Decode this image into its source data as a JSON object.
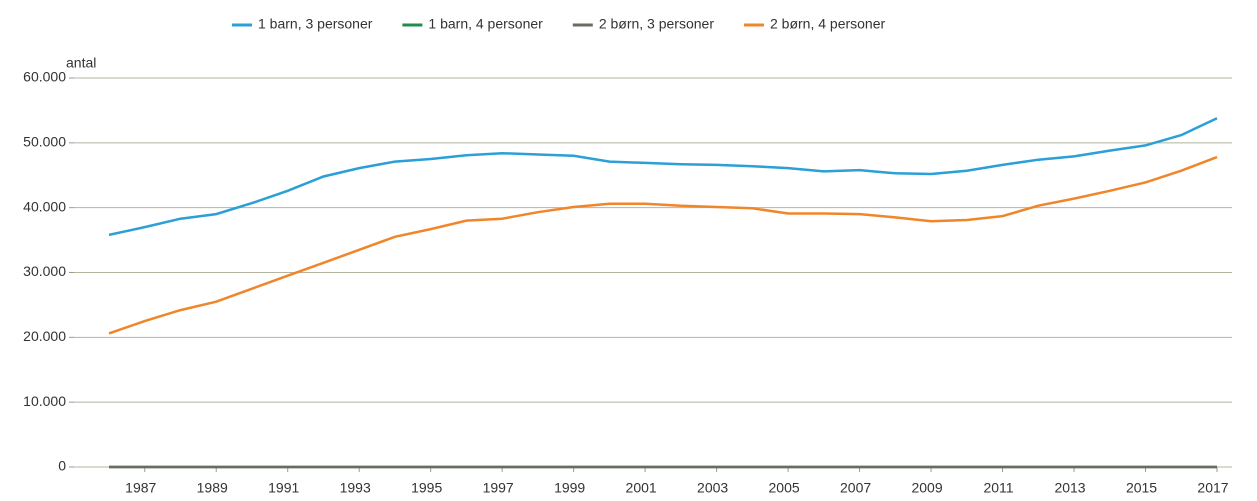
{
  "chart_data": {
    "type": "line",
    "y_label": "antal",
    "x": [
      1986,
      1987,
      1988,
      1989,
      1990,
      1991,
      1992,
      1993,
      1994,
      1995,
      1996,
      1997,
      1998,
      1999,
      2000,
      2001,
      2002,
      2003,
      2004,
      2005,
      2006,
      2007,
      2008,
      2009,
      2010,
      2011,
      2012,
      2013,
      2014,
      2015,
      2016,
      2017
    ],
    "xlim": [
      1986,
      2017
    ],
    "xticks": [
      1987,
      1989,
      1991,
      1993,
      1995,
      1997,
      1999,
      2001,
      2003,
      2005,
      2007,
      2009,
      2011,
      2013,
      2015,
      2017
    ],
    "ylim": [
      0,
      60000
    ],
    "yticks": [
      0,
      {
        "value": 10000,
        "label": "10.000"
      },
      {
        "value": 20000,
        "label": "20.000"
      },
      {
        "value": 30000,
        "label": "30.000"
      },
      {
        "value": 40000,
        "label": "40.000"
      },
      {
        "value": 50000,
        "label": "50.000"
      },
      {
        "value": 60000,
        "label": "60.000"
      }
    ],
    "grid": true,
    "legend": "top",
    "series": [
      {
        "name": "1 barn, 3 personer",
        "color": "#2a9fd8",
        "values": [
          35800,
          37000,
          38300,
          39000,
          40700,
          42600,
          44800,
          46100,
          47100,
          47500,
          48100,
          48400,
          48200,
          48000,
          47100,
          46900,
          46700,
          46600,
          46400,
          46100,
          45600,
          45800,
          45300,
          45200,
          45700,
          46600,
          47400,
          47900,
          48800,
          49600,
          51200,
          53800
        ]
      },
      {
        "name": "1 barn, 4 personer",
        "color": "#1e8e4e",
        "values": [
          0,
          0,
          0,
          0,
          0,
          0,
          0,
          0,
          0,
          0,
          0,
          0,
          0,
          0,
          0,
          0,
          0,
          0,
          0,
          0,
          0,
          0,
          0,
          0,
          0,
          0,
          0,
          0,
          0,
          0,
          0,
          0
        ]
      },
      {
        "name": "2 børn, 3 personer",
        "color": "#6b6b62",
        "values": [
          0,
          0,
          0,
          0,
          0,
          0,
          0,
          0,
          0,
          0,
          0,
          0,
          0,
          0,
          0,
          0,
          0,
          0,
          0,
          0,
          0,
          0,
          0,
          0,
          0,
          0,
          0,
          0,
          0,
          0,
          0,
          0
        ]
      },
      {
        "name": "2 børn, 4 personer",
        "color": "#f0862a",
        "values": [
          20600,
          22500,
          24200,
          25500,
          27500,
          29500,
          31500,
          33500,
          35500,
          36700,
          38000,
          38300,
          39300,
          40100,
          40600,
          40600,
          40300,
          40100,
          39900,
          39100,
          39100,
          39000,
          38500,
          37900,
          38100,
          38700,
          40300,
          41400,
          42600,
          43900,
          45700,
          47800
        ]
      }
    ]
  }
}
